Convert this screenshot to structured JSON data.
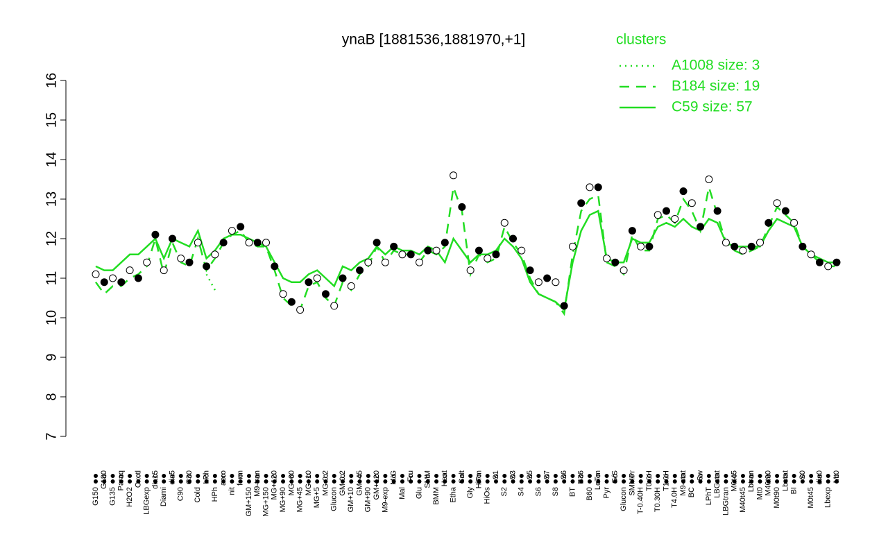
{
  "chart_data": {
    "type": "line",
    "title": "ynaB [1881536,1881970,+1]",
    "legend_title": "clusters",
    "categories": [
      "G150",
      "G180",
      "G135",
      "Paraq",
      "H2O2",
      "Oxctl",
      "LBGexp",
      "dia15",
      "Diami",
      "dia5",
      "C90",
      "C30",
      "Cold",
      "LPh",
      "HPh",
      "aero",
      "nit",
      "ferm",
      "GM+150",
      "M9-tran",
      "MG+150",
      "MG+120",
      "MG+90",
      "MG+60",
      "MG+45",
      "MG+10",
      "MG+5",
      "MG-0.2",
      "Glucon",
      "GM-0.2",
      "GM+10",
      "GM+45",
      "GM+90",
      "GM+120",
      "M9-exp",
      "M/G",
      "Mal",
      "Fru",
      "Glu",
      "SMM",
      "BMM",
      "Heat",
      "Etha",
      "Salt",
      "Gly",
      "HiTm",
      "HiOs",
      "S1",
      "S2",
      "S3",
      "S4",
      "S5",
      "S6",
      "S7",
      "S8",
      "S6",
      "BT",
      "B36",
      "B60",
      "LoTm",
      "Pyr",
      "G/S",
      "Glucon",
      "SMMPr",
      "T-0.40H",
      "T0.0H",
      "T0.30H",
      "T1.0H",
      "T4.0H",
      "M9-stat",
      "BC",
      "Sw",
      "LPhT",
      "LBGstat",
      "LBGtran",
      "M0t45",
      "M40t45",
      "Lbtran",
      "Mt0",
      "M40t90",
      "M0t90",
      "Lbstat",
      "BI",
      "S0",
      "M0t45",
      "dia0",
      "Lbexp",
      "Mt0"
    ],
    "values": [
      11.1,
      10.9,
      11.0,
      10.9,
      11.2,
      11.0,
      11.4,
      12.1,
      11.2,
      12.0,
      11.5,
      11.4,
      11.9,
      11.3,
      11.6,
      11.9,
      12.2,
      12.3,
      11.9,
      11.9,
      11.9,
      11.3,
      10.6,
      10.4,
      10.2,
      10.9,
      11.0,
      10.6,
      10.3,
      11.0,
      10.8,
      11.2,
      11.4,
      11.9,
      11.4,
      11.8,
      11.6,
      11.6,
      11.4,
      11.7,
      11.7,
      11.9,
      13.6,
      12.8,
      11.2,
      11.7,
      11.5,
      11.6,
      12.4,
      12.0,
      11.7,
      11.2,
      10.9,
      11.0,
      10.9,
      10.3,
      11.8,
      12.9,
      13.3,
      13.3,
      11.5,
      11.4,
      11.2,
      12.2,
      11.8,
      11.8,
      12.6,
      12.7,
      12.5,
      13.2,
      12.9,
      12.3,
      13.5,
      12.7,
      11.9,
      11.8,
      11.7,
      11.8,
      11.9,
      12.4,
      12.9,
      12.7,
      12.4,
      11.8,
      11.6,
      11.4,
      11.3,
      11.4
    ],
    "point_color": "#000000",
    "series": [
      {
        "name": "A1008 size: 3",
        "color": "#22dd22",
        "dash": "dotted",
        "values": [
          null,
          null,
          null,
          null,
          null,
          null,
          null,
          null,
          null,
          null,
          null,
          null,
          null,
          11.1,
          10.7,
          null,
          null,
          null,
          null,
          null,
          null,
          null,
          null,
          null,
          null,
          null,
          null,
          null,
          null,
          null,
          null,
          null,
          null,
          null,
          null,
          null,
          null,
          null,
          null,
          null,
          null,
          null,
          null,
          null,
          null,
          null,
          null,
          null,
          null,
          null,
          null,
          null,
          null,
          null,
          null,
          null,
          null,
          null,
          null,
          null,
          null,
          null,
          null,
          null,
          null,
          null,
          null,
          null,
          null,
          null,
          null,
          null,
          null,
          null,
          null,
          null,
          null,
          null,
          null,
          null,
          null,
          null,
          null,
          null,
          null,
          null,
          null,
          null
        ]
      },
      {
        "name": "B184 size: 19",
        "color": "#22dd22",
        "dash": "dashed",
        "values": [
          10.9,
          10.6,
          10.8,
          10.8,
          11.0,
          11.1,
          11.3,
          12.0,
          11.1,
          11.9,
          11.4,
          11.3,
          12.0,
          11.2,
          11.5,
          11.9,
          12.1,
          12.2,
          11.9,
          11.8,
          11.8,
          11.2,
          10.5,
          10.3,
          10.2,
          10.8,
          10.9,
          10.5,
          10.3,
          10.9,
          10.7,
          11.1,
          11.3,
          11.8,
          11.4,
          11.7,
          11.6,
          11.6,
          11.4,
          11.7,
          11.6,
          11.8,
          13.3,
          12.7,
          11.1,
          11.6,
          11.4,
          11.5,
          12.3,
          11.9,
          11.6,
          11.0,
          10.6,
          10.5,
          10.4,
          10.1,
          11.6,
          12.7,
          13.0,
          13.1,
          11.4,
          11.3,
          11.1,
          12.1,
          11.7,
          11.7,
          12.5,
          12.6,
          12.4,
          13.0,
          12.7,
          12.2,
          13.3,
          12.6,
          11.9,
          11.7,
          11.6,
          11.7,
          11.8,
          12.3,
          12.8,
          12.6,
          12.4,
          11.8,
          11.6,
          11.4,
          11.3,
          11.3
        ]
      },
      {
        "name": "C59 size: 57",
        "color": "#22dd22",
        "dash": "solid",
        "values": [
          11.3,
          11.2,
          11.2,
          11.4,
          11.6,
          11.6,
          11.8,
          12.0,
          11.5,
          12.0,
          11.9,
          11.8,
          12.2,
          11.5,
          11.7,
          12.0,
          12.1,
          12.1,
          12.0,
          11.9,
          11.8,
          11.4,
          11.0,
          10.9,
          10.9,
          11.1,
          11.2,
          11.0,
          10.8,
          11.3,
          11.2,
          11.4,
          11.5,
          11.8,
          11.6,
          11.8,
          11.7,
          11.7,
          11.6,
          11.8,
          11.7,
          11.4,
          12.0,
          11.7,
          11.4,
          11.6,
          11.6,
          11.7,
          12.0,
          11.8,
          11.5,
          10.9,
          10.6,
          10.5,
          10.4,
          10.2,
          11.4,
          12.2,
          12.6,
          12.7,
          11.5,
          11.4,
          11.4,
          12.0,
          11.9,
          11.9,
          12.3,
          12.4,
          12.3,
          12.5,
          12.3,
          12.2,
          12.5,
          12.4,
          11.9,
          11.8,
          11.8,
          11.8,
          11.8,
          12.2,
          12.5,
          12.4,
          12.3,
          11.8,
          11.6,
          11.5,
          11.4,
          11.4
        ]
      }
    ],
    "ylim": [
      7,
      16
    ],
    "yticks": [
      7,
      8,
      9,
      10,
      11,
      12,
      13,
      14,
      15,
      16
    ]
  }
}
